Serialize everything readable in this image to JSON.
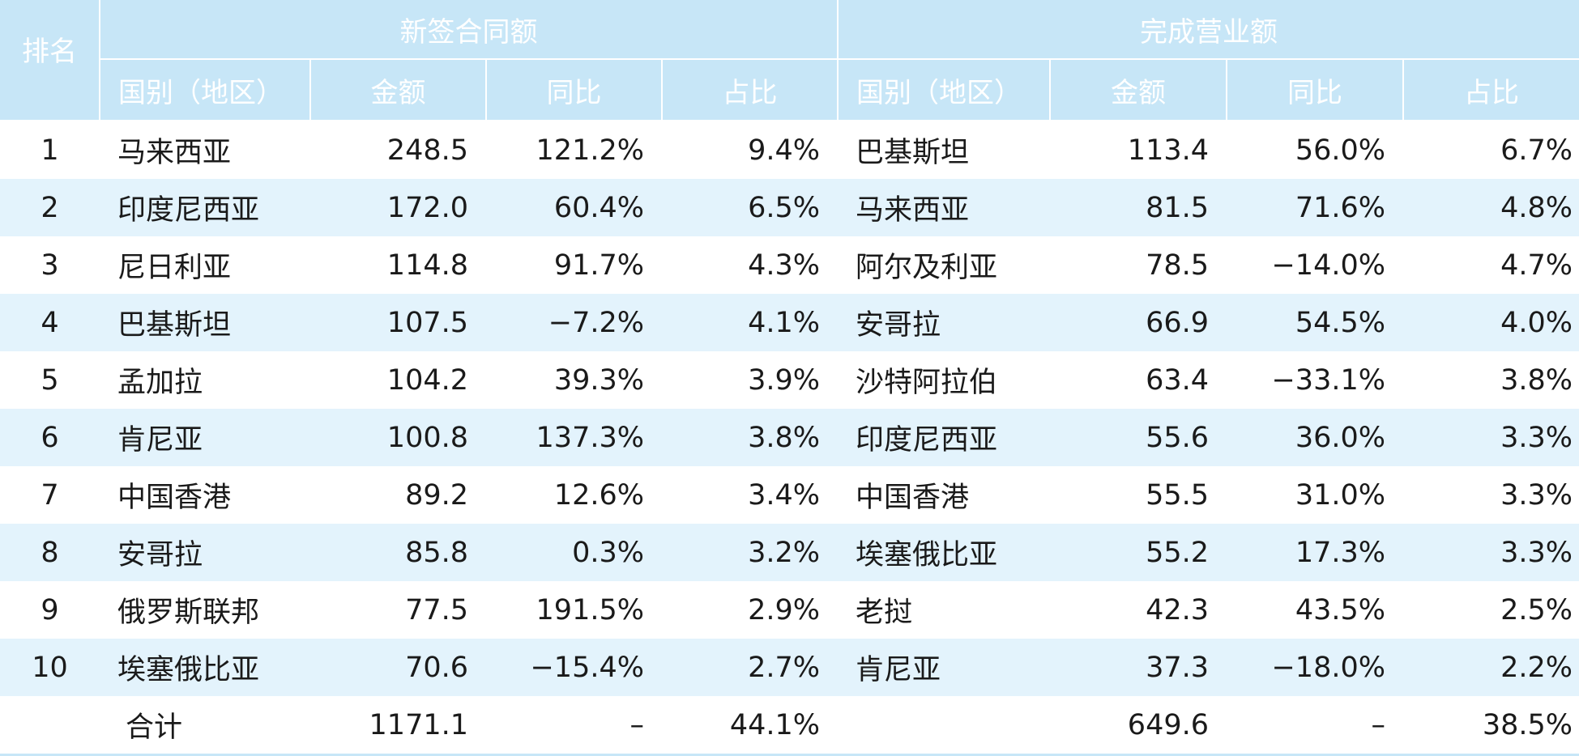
{
  "header": {
    "rank": "排名",
    "new_contracts": "新签合同额",
    "revenue": "完成营业额",
    "country": "国别（地区）",
    "amount": "金额",
    "yoy": "同比",
    "share": "占比"
  },
  "rows": [
    {
      "rank": "1",
      "nc_country": "马来西亚",
      "nc_amount": "248.5",
      "nc_yoy": "121.2%",
      "nc_share": "9.4%",
      "rv_country": "巴基斯坦",
      "rv_amount": "113.4",
      "rv_yoy": "56.0%",
      "rv_share": "6.7%"
    },
    {
      "rank": "2",
      "nc_country": "印度尼西亚",
      "nc_amount": "172.0",
      "nc_yoy": "60.4%",
      "nc_share": "6.5%",
      "rv_country": "马来西亚",
      "rv_amount": "81.5",
      "rv_yoy": "71.6%",
      "rv_share": "4.8%"
    },
    {
      "rank": "3",
      "nc_country": "尼日利亚",
      "nc_amount": "114.8",
      "nc_yoy": "91.7%",
      "nc_share": "4.3%",
      "rv_country": "阿尔及利亚",
      "rv_amount": "78.5",
      "rv_yoy": "−14.0%",
      "rv_share": "4.7%"
    },
    {
      "rank": "4",
      "nc_country": "巴基斯坦",
      "nc_amount": "107.5",
      "nc_yoy": "−7.2%",
      "nc_share": "4.1%",
      "rv_country": "安哥拉",
      "rv_amount": "66.9",
      "rv_yoy": "54.5%",
      "rv_share": "4.0%"
    },
    {
      "rank": "5",
      "nc_country": "孟加拉",
      "nc_amount": "104.2",
      "nc_yoy": "39.3%",
      "nc_share": "3.9%",
      "rv_country": "沙特阿拉伯",
      "rv_amount": "63.4",
      "rv_yoy": "−33.1%",
      "rv_share": "3.8%"
    },
    {
      "rank": "6",
      "nc_country": "肯尼亚",
      "nc_amount": "100.8",
      "nc_yoy": "137.3%",
      "nc_share": "3.8%",
      "rv_country": "印度尼西亚",
      "rv_amount": "55.6",
      "rv_yoy": "36.0%",
      "rv_share": "3.3%"
    },
    {
      "rank": "7",
      "nc_country": "中国香港",
      "nc_amount": "89.2",
      "nc_yoy": "12.6%",
      "nc_share": "3.4%",
      "rv_country": "中国香港",
      "rv_amount": "55.5",
      "rv_yoy": "31.0%",
      "rv_share": "3.3%"
    },
    {
      "rank": "8",
      "nc_country": "安哥拉",
      "nc_amount": "85.8",
      "nc_yoy": "0.3%",
      "nc_share": "3.2%",
      "rv_country": "埃塞俄比亚",
      "rv_amount": "55.2",
      "rv_yoy": "17.3%",
      "rv_share": "3.3%"
    },
    {
      "rank": "9",
      "nc_country": "俄罗斯联邦",
      "nc_amount": "77.5",
      "nc_yoy": "191.5%",
      "nc_share": "2.9%",
      "rv_country": "老挝",
      "rv_amount": "42.3",
      "rv_yoy": "43.5%",
      "rv_share": "2.5%"
    },
    {
      "rank": "10",
      "nc_country": "埃塞俄比亚",
      "nc_amount": "70.6",
      "nc_yoy": "−15.4%",
      "nc_share": "2.7%",
      "rv_country": "肯尼亚",
      "rv_amount": "37.3",
      "rv_yoy": "−18.0%",
      "rv_share": "2.2%"
    }
  ],
  "total": {
    "label": "合计",
    "nc_amount": "1171.1",
    "nc_yoy": "–",
    "nc_share": "44.1%",
    "rv_amount": "649.6",
    "rv_yoy": "–",
    "rv_share": "38.5%"
  },
  "colors": {
    "header_bg": "#c7e6f7",
    "header_text": "#ffffff",
    "alt_row_bg": "#e3f3fc",
    "body_text": "#1a1a1a"
  }
}
